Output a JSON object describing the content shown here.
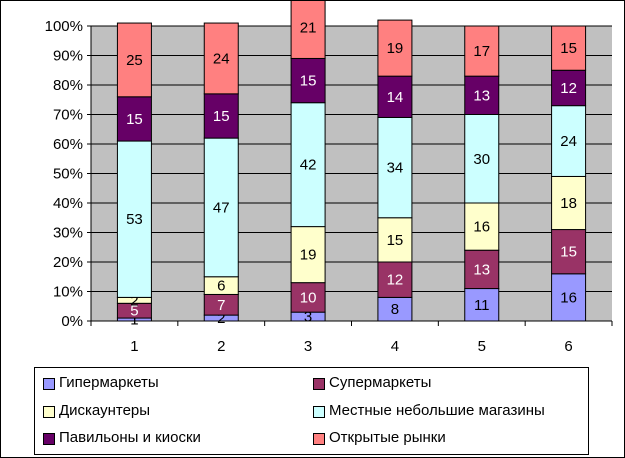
{
  "chart_data": {
    "type": "bar",
    "stacked": "percent",
    "categories": [
      "1",
      "2",
      "3",
      "4",
      "5",
      "6"
    ],
    "ylim": [
      0,
      100
    ],
    "y_ticks": [
      "0%",
      "10%",
      "20%",
      "30%",
      "40%",
      "50%",
      "60%",
      "70%",
      "80%",
      "90%",
      "100%"
    ],
    "grid": true,
    "plot_background": "#c0c0c0",
    "legend_position": "bottom",
    "series": [
      {
        "name": "Гипермаркеты",
        "color": "#9999ff",
        "values": [
          1,
          2,
          3,
          8,
          11,
          16
        ]
      },
      {
        "name": "Супермаркеты",
        "color": "#993366",
        "values": [
          5,
          7,
          10,
          12,
          13,
          15
        ]
      },
      {
        "name": "Дискаунтеры",
        "color": "#ffffcc",
        "values": [
          2,
          6,
          19,
          15,
          16,
          18
        ]
      },
      {
        "name": "Местные небольшие магазины",
        "color": "#ccffff",
        "values": [
          53,
          47,
          42,
          34,
          30,
          24
        ]
      },
      {
        "name": "Павильоны и киоски",
        "color": "#660066",
        "values": [
          15,
          15,
          15,
          14,
          13,
          12
        ]
      },
      {
        "name": "Открытые рынки",
        "color": "#ff8080",
        "values": [
          25,
          24,
          21,
          19,
          17,
          15
        ]
      }
    ]
  }
}
